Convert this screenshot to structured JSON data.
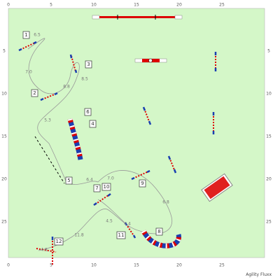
{
  "axis": {
    "top": [
      "0",
      "5",
      "10",
      "15",
      "20",
      "25"
    ],
    "bottom": [
      "0",
      "5",
      "10",
      "15",
      "20",
      "25"
    ],
    "left": [
      "5",
      "10",
      "15",
      "20",
      "25"
    ],
    "right": [
      "5",
      "10",
      "15",
      "20",
      "25"
    ]
  },
  "obstacle_numbers": [
    "1",
    "2",
    "3",
    "4",
    "5",
    "6",
    "7",
    "8",
    "9",
    "10",
    "11",
    "12"
  ],
  "distances": [
    "6.5",
    "7.0",
    "8.8",
    "8.5",
    "5.3",
    "6.4",
    "7.0",
    "4.5",
    "4.4",
    "6.8",
    "11.8",
    "4.8"
  ],
  "footer": "Agility Fluxx"
}
